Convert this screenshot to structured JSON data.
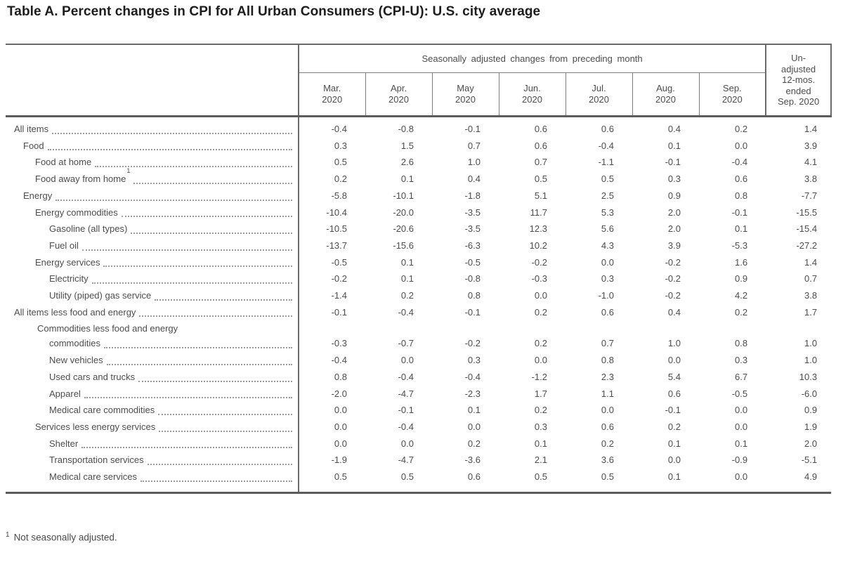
{
  "title": "Table A. Percent changes in CPI for All Urban Consumers (CPI-U): U.S. city average",
  "table": {
    "spanner": "Seasonally adjusted changes from preceding month",
    "month_headers": [
      "Mar.\n2020",
      "Apr.\n2020",
      "May\n2020",
      "Jun.\n2020",
      "Jul.\n2020",
      "Aug.\n2020",
      "Sep.\n2020"
    ],
    "last_col_header": "Un-\nadjusted\n12-mos.\nended\nSep. 2020",
    "rows": [
      {
        "label": "All items",
        "level": 0,
        "values": [
          "-0.4",
          "-0.8",
          "-0.1",
          "0.6",
          "0.6",
          "0.4",
          "0.2",
          "1.4"
        ]
      },
      {
        "label": "Food",
        "level": 1,
        "values": [
          "0.3",
          "1.5",
          "0.7",
          "0.6",
          "-0.4",
          "0.1",
          "0.0",
          "3.9"
        ]
      },
      {
        "label": "Food at home",
        "level": 2,
        "values": [
          "0.5",
          "2.6",
          "1.0",
          "0.7",
          "-1.1",
          "-0.1",
          "-0.4",
          "4.1"
        ]
      },
      {
        "label": "Food away from home",
        "sup": "1",
        "level": 2,
        "values": [
          "0.2",
          "0.1",
          "0.4",
          "0.5",
          "0.5",
          "0.3",
          "0.6",
          "3.8"
        ]
      },
      {
        "label": "Energy",
        "level": 1,
        "values": [
          "-5.8",
          "-10.1",
          "-1.8",
          "5.1",
          "2.5",
          "0.9",
          "0.8",
          "-7.7"
        ]
      },
      {
        "label": "Energy commodities",
        "level": 2,
        "values": [
          "-10.4",
          "-20.0",
          "-3.5",
          "11.7",
          "5.3",
          "2.0",
          "-0.1",
          "-15.5"
        ]
      },
      {
        "label": "Gasoline (all types)",
        "level": 3,
        "values": [
          "-10.5",
          "-20.6",
          "-3.5",
          "12.3",
          "5.6",
          "2.0",
          "0.1",
          "-15.4"
        ]
      },
      {
        "label": "Fuel oil",
        "level": 3,
        "values": [
          "-13.7",
          "-15.6",
          "-6.3",
          "10.2",
          "4.3",
          "3.9",
          "-5.3",
          "-27.2"
        ]
      },
      {
        "label": "Energy services",
        "level": 2,
        "values": [
          "-0.5",
          "0.1",
          "-0.5",
          "-0.2",
          "0.0",
          "-0.2",
          "1.6",
          "1.4"
        ]
      },
      {
        "label": "Electricity",
        "level": 3,
        "values": [
          "-0.2",
          "0.1",
          "-0.8",
          "-0.3",
          "0.3",
          "-0.2",
          "0.9",
          "0.7"
        ]
      },
      {
        "label": "Utility (piped) gas service",
        "level": 3,
        "values": [
          "-1.4",
          "0.2",
          "0.8",
          "0.0",
          "-1.0",
          "-0.2",
          "4.2",
          "3.8"
        ]
      },
      {
        "label": "All items less food and energy",
        "level": 0,
        "values": [
          "-0.1",
          "-0.4",
          "-0.1",
          "0.2",
          "0.6",
          "0.4",
          "0.2",
          "1.7"
        ]
      },
      {
        "label": "Commodities less food and  energy",
        "label2": "commodities",
        "level": 2,
        "values": [
          "-0.3",
          "-0.7",
          "-0.2",
          "0.2",
          "0.7",
          "1.0",
          "0.8",
          "1.0"
        ]
      },
      {
        "label": "New vehicles",
        "level": 3,
        "values": [
          "-0.4",
          "0.0",
          "0.3",
          "0.0",
          "0.8",
          "0.0",
          "0.3",
          "1.0"
        ]
      },
      {
        "label": "Used cars and trucks",
        "level": 3,
        "values": [
          "0.8",
          "-0.4",
          "-0.4",
          "-1.2",
          "2.3",
          "5.4",
          "6.7",
          "10.3"
        ]
      },
      {
        "label": "Apparel",
        "level": 3,
        "values": [
          "-2.0",
          "-4.7",
          "-2.3",
          "1.7",
          "1.1",
          "0.6",
          "-0.5",
          "-6.0"
        ]
      },
      {
        "label": "Medical care commodities",
        "level": 3,
        "values": [
          "0.0",
          "-0.1",
          "0.1",
          "0.2",
          "0.0",
          "-0.1",
          "0.0",
          "0.9"
        ]
      },
      {
        "label": "Services less energy services",
        "level": 2,
        "values": [
          "0.0",
          "-0.4",
          "0.0",
          "0.3",
          "0.6",
          "0.2",
          "0.0",
          "1.9"
        ]
      },
      {
        "label": "Shelter",
        "level": 3,
        "values": [
          "0.0",
          "0.0",
          "0.2",
          "0.1",
          "0.2",
          "0.1",
          "0.1",
          "2.0"
        ]
      },
      {
        "label": "Transportation services",
        "level": 3,
        "values": [
          "-1.9",
          "-4.7",
          "-3.6",
          "2.1",
          "3.6",
          "0.0",
          "-0.9",
          "-5.1"
        ]
      },
      {
        "label": "Medical care services",
        "level": 3,
        "values": [
          "0.5",
          "0.5",
          "0.6",
          "0.5",
          "0.5",
          "0.1",
          "0.0",
          "4.9"
        ]
      }
    ]
  },
  "footnote": {
    "marker": "1",
    "text": "Not seasonally adjusted."
  }
}
